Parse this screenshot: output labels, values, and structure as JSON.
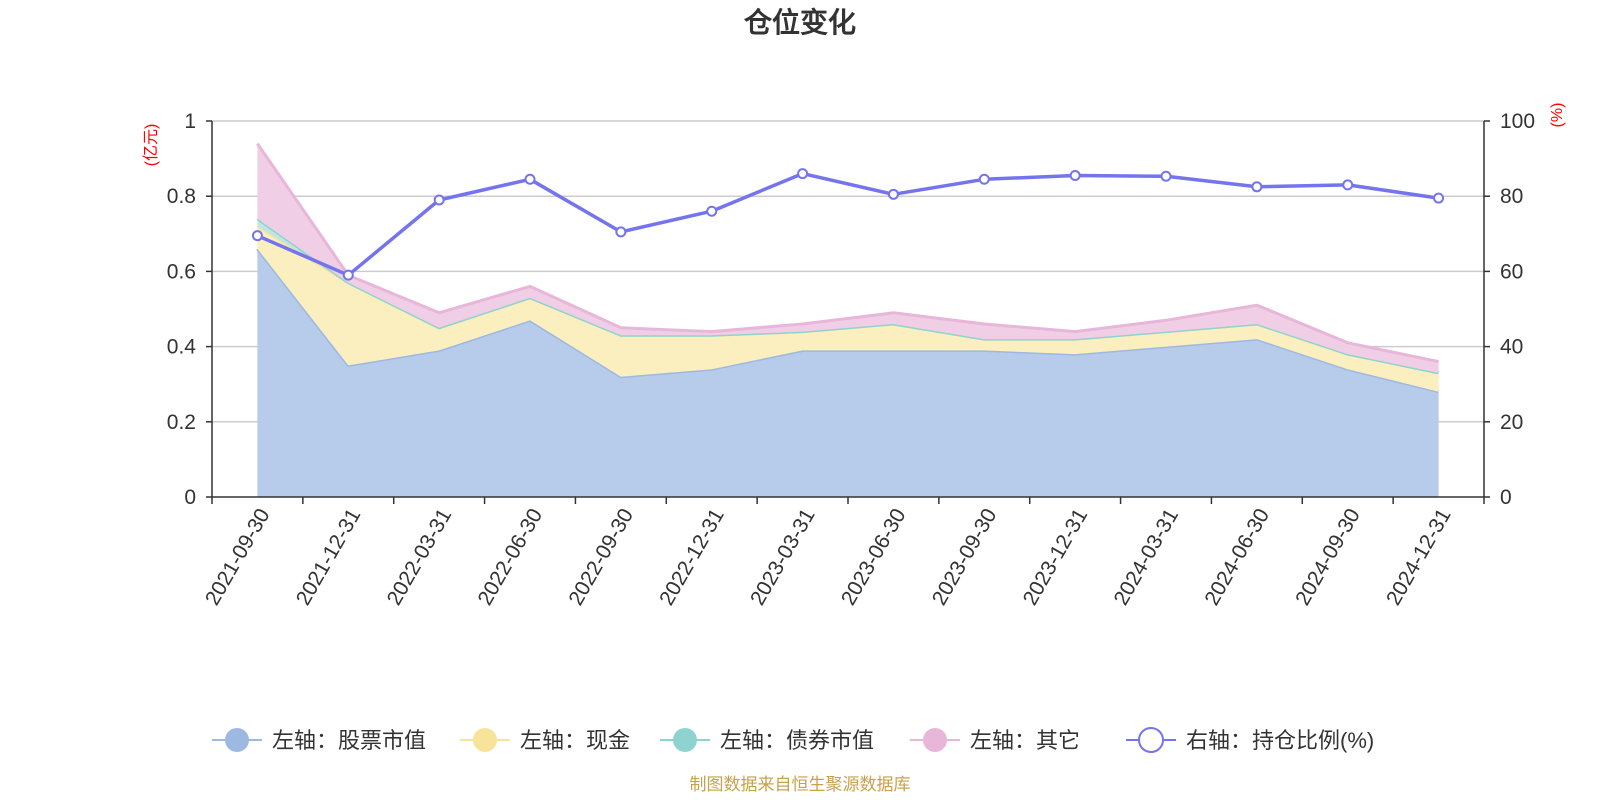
{
  "title": "仓位变化",
  "source": "制图数据来自恒生聚源数据库",
  "chart_data": {
    "type": "area",
    "title": "仓位变化",
    "x": [
      "2021-09-30",
      "2021-12-31",
      "2022-03-31",
      "2022-06-30",
      "2022-09-30",
      "2022-12-31",
      "2023-03-31",
      "2023-06-30",
      "2023-09-30",
      "2023-12-31",
      "2024-03-31",
      "2024-06-30",
      "2024-09-30",
      "2024-12-31"
    ],
    "y_left": {
      "unit": "(亿元)",
      "ylim": [
        0,
        1
      ],
      "ticks": [
        "0",
        "0.2",
        "0.4",
        "0.6",
        "0.8",
        "1"
      ]
    },
    "y_right": {
      "unit": "(%)",
      "ylim": [
        0,
        100
      ],
      "ticks": [
        "0",
        "20",
        "40",
        "60",
        "80",
        "100"
      ]
    },
    "stacked": true,
    "grid": true,
    "legend_position": "bottom",
    "series": [
      {
        "name": "左轴：股票市值",
        "axis": "left",
        "type": "area",
        "color": "#9db9e2",
        "fill": "#b7cbea",
        "values": [
          0.66,
          0.35,
          0.39,
          0.47,
          0.32,
          0.34,
          0.39,
          0.39,
          0.39,
          0.38,
          0.4,
          0.42,
          0.34,
          0.28
        ]
      },
      {
        "name": "左轴：现金",
        "axis": "left",
        "type": "area",
        "color": "#f7e49a",
        "fill": "#fbefc0",
        "values": [
          0.06,
          0.22,
          0.06,
          0.06,
          0.11,
          0.09,
          0.05,
          0.07,
          0.03,
          0.04,
          0.04,
          0.04,
          0.04,
          0.05
        ]
      },
      {
        "name": "左轴：债券市值",
        "axis": "left",
        "type": "area",
        "color": "#8fd3d1",
        "fill": "#bfe6e4",
        "values": [
          0.02,
          0.0,
          0.0,
          0.0,
          0.0,
          0.0,
          0.0,
          0.0,
          0.0,
          0.0,
          0.0,
          0.0,
          0.0,
          0.0
        ]
      },
      {
        "name": "左轴：其它",
        "axis": "left",
        "type": "area",
        "color": "#e8b6d9",
        "fill": "#f0cfe6",
        "values": [
          0.2,
          0.02,
          0.04,
          0.03,
          0.02,
          0.01,
          0.02,
          0.03,
          0.04,
          0.02,
          0.03,
          0.05,
          0.03,
          0.03
        ]
      },
      {
        "name": "右轴：持仓比例(%)",
        "axis": "right",
        "type": "line",
        "color": "#7474ee",
        "values": [
          69.5,
          59,
          79,
          84.5,
          70.5,
          76,
          86,
          80.5,
          84.5,
          85.5,
          85.3,
          82.5,
          83,
          79.5
        ]
      }
    ]
  }
}
